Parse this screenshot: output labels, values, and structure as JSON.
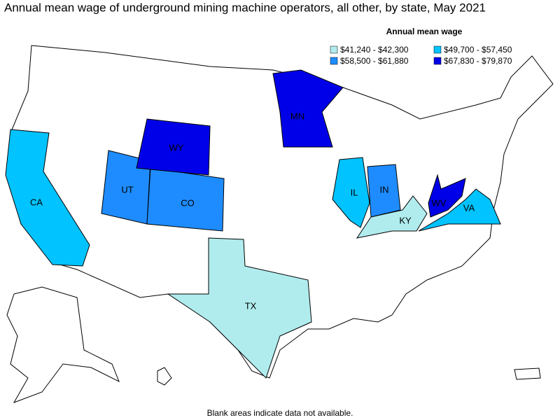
{
  "title": "Annual mean wage of underground mining machine operators, all other, by state, May 2021",
  "legend": {
    "title": "Annual mean wage",
    "items": [
      {
        "label": "$41,240 - $42,300",
        "color": "#b0ecee"
      },
      {
        "label": "$49,700 - $57,450",
        "color": "#00c3ff"
      },
      {
        "label": "$58,500 - $61,880",
        "color": "#1e8cff"
      },
      {
        "label": "$67,830 - $79,870",
        "color": "#0000e8"
      }
    ]
  },
  "states": [
    {
      "label": "CA",
      "color": "#00c3ff"
    },
    {
      "label": "UT",
      "color": "#1e8cff"
    },
    {
      "label": "CO",
      "color": "#1e8cff"
    },
    {
      "label": "WY",
      "color": "#0000e8"
    },
    {
      "label": "MN",
      "color": "#0000e8"
    },
    {
      "label": "IL",
      "color": "#00c3ff"
    },
    {
      "label": "IN",
      "color": "#1e8cff"
    },
    {
      "label": "KY",
      "color": "#b0ecee"
    },
    {
      "label": "WV",
      "color": "#0000e8"
    },
    {
      "label": "VA",
      "color": "#00c3ff"
    },
    {
      "label": "TX",
      "color": "#b0ecee"
    }
  ],
  "footnote": "Blank areas indicate data not available."
}
